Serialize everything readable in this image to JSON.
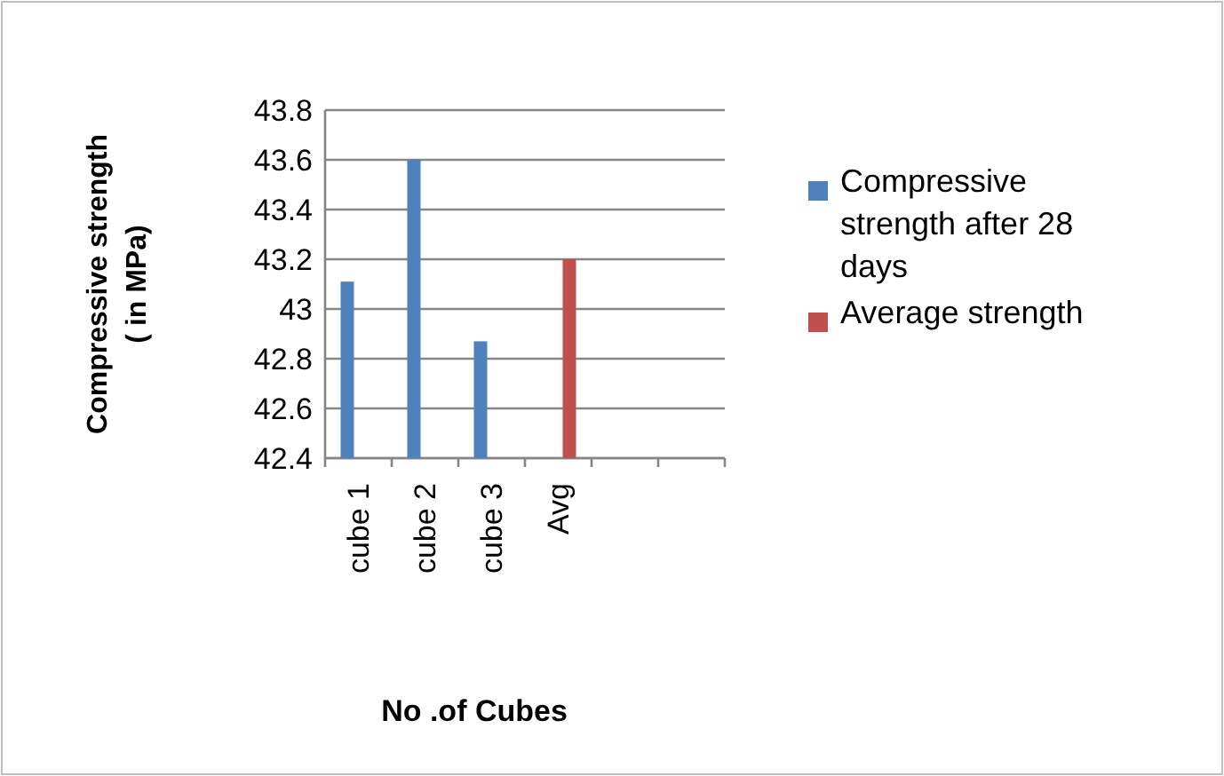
{
  "chart_data": {
    "type": "bar",
    "xlabel": "No .of Cubes",
    "ylabel": "Compressive strength ( in MPa)",
    "categories": [
      "cube 1",
      "cube 2",
      "cube 3",
      "Avg",
      null,
      null
    ],
    "series": [
      {
        "name": "Compressive strength after 28 days",
        "color": "#4f81bd",
        "values": [
          43.11,
          43.6,
          42.87,
          null,
          null,
          null
        ]
      },
      {
        "name": "Average strength",
        "color": "#c0504d",
        "values": [
          null,
          null,
          null,
          43.2,
          null,
          null
        ]
      }
    ],
    "ylim": [
      42.4,
      43.8
    ],
    "yticks": [
      42.4,
      42.6,
      42.8,
      43,
      43.2,
      43.4,
      43.6,
      43.8
    ],
    "grid": "y",
    "legend": "right"
  }
}
